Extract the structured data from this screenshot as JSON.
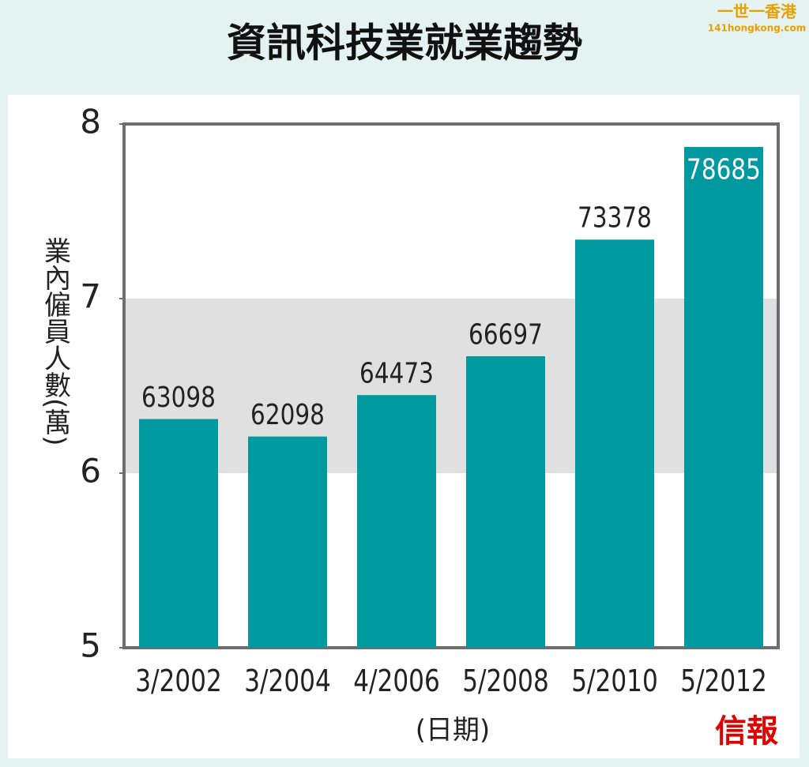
{
  "chart_data": {
    "type": "bar",
    "title": "資訊科技業就業趨勢",
    "y_label": "業內僱員人數(萬)",
    "x_label": "(日期)",
    "categories": [
      "3/2002",
      "3/2004",
      "4/2006",
      "5/2008",
      "5/2010",
      "5/2012"
    ],
    "values": [
      6.3098,
      6.2098,
      6.4473,
      6.6697,
      7.3378,
      7.8685
    ],
    "value_labels": [
      "63098",
      "62098",
      "64473",
      "66697",
      "73378",
      "78685"
    ],
    "color": "#0099a0",
    "ylim": [
      5,
      8
    ],
    "yticks": [
      5,
      6,
      7,
      8
    ],
    "grid": false
  },
  "source": "信報",
  "watermark": {
    "name": "一世一香港",
    "site": "141hongkong.com"
  }
}
